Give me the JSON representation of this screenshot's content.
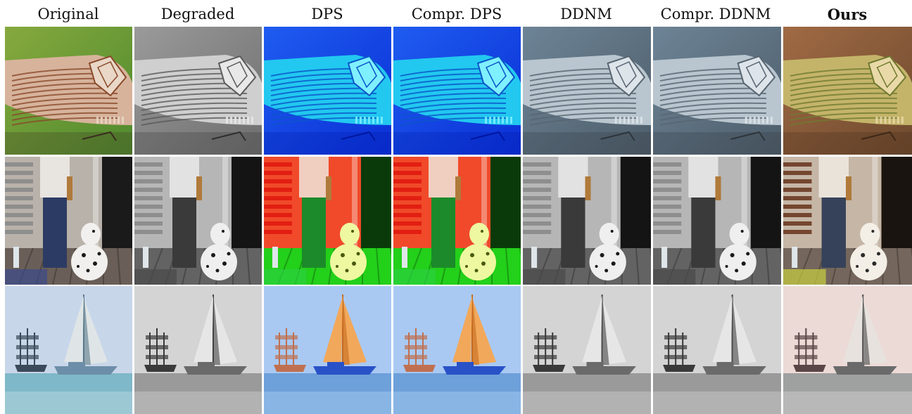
{
  "columns": [
    {
      "label": "Original",
      "bold": false
    },
    {
      "label": "Degraded",
      "bold": false
    },
    {
      "label": "DPS",
      "bold": false
    },
    {
      "label": "Compr. DPS",
      "bold": false
    },
    {
      "label": "DDNM",
      "bold": false
    },
    {
      "label": "Compr. DDNM",
      "bold": false
    },
    {
      "label": "Ours",
      "bold": true
    }
  ],
  "rows": [
    {
      "subject": "insect",
      "styles": [
        "natural",
        "gray",
        "blue",
        "blue",
        "desat-blue",
        "desat-blue",
        "warm"
      ]
    },
    {
      "subject": "person-dog",
      "styles": [
        "natural",
        "gray",
        "redgreen",
        "redgreen",
        "gray",
        "gray",
        "warm"
      ]
    },
    {
      "subject": "sailboat",
      "styles": [
        "natural",
        "gray",
        "orange-sail",
        "orange-sail",
        "gray",
        "gray",
        "pink-gray"
      ]
    }
  ]
}
